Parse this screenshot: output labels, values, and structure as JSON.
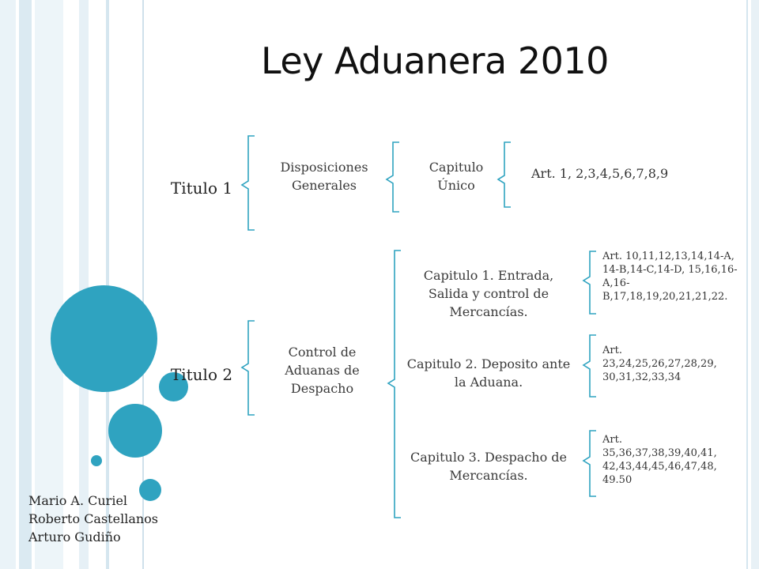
{
  "title": "Ley Aduanera 2010",
  "colors": {
    "accent": "#2fa3c0",
    "bracket": "#2fa3c0",
    "stripe": "#d3e5ee"
  },
  "titulo1": {
    "label": "Titulo 1",
    "disposicion": "Disposiciones Generales",
    "capitulo": "Capitulo Único",
    "articulos": "Art. 1, 2,3,4,5,6,7,8,9"
  },
  "titulo2": {
    "label": "Titulo 2",
    "control": "Control de Aduanas de Despacho",
    "capitulos": [
      {
        "label": "Capitulo 1. Entrada, Salida y control de Mercancías.",
        "articulos": "Art. 10,11,12,13,14,14-A, 14-B,14-C,14-D, 15,16,16-A,16-B,17,18,19,20,21,21,22."
      },
      {
        "label": "Capitulo 2. Deposito ante la Aduana.",
        "articulos": "Art. 23,24,25,26,27,28,29, 30,31,32,33,34"
      },
      {
        "label": "Capitulo 3. Despacho de Mercancías.",
        "articulos": "Art. 35,36,37,38,39,40,41, 42,43,44,45,46,47,48, 49.50"
      }
    ]
  },
  "authors": [
    "Mario A. Curiel",
    "Roberto Castellanos",
    "Arturo Gudiño"
  ]
}
